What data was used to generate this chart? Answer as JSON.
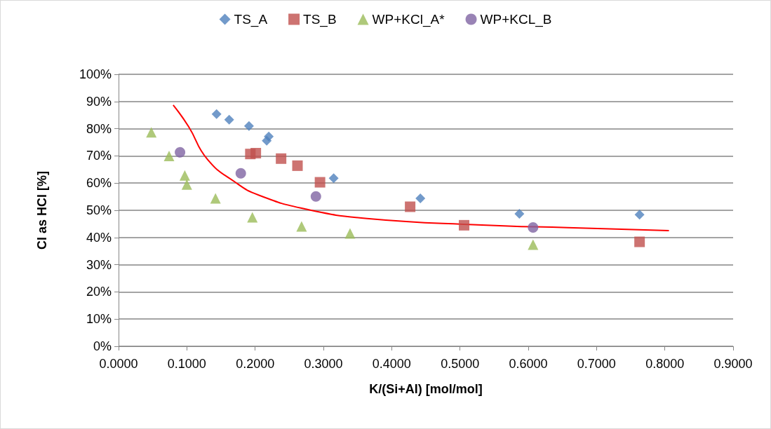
{
  "chart_data": {
    "type": "scatter",
    "xlabel": "K/(Si+Al) [mol/mol]",
    "ylabel": "Cl as HCl [%]",
    "xlim": [
      0,
      0.9
    ],
    "xticks": [
      {
        "value": 0,
        "label": "0.0000"
      },
      {
        "value": 0.1,
        "label": "0.1000"
      },
      {
        "value": 0.2,
        "label": "0.2000"
      },
      {
        "value": 0.3,
        "label": "0.3000"
      },
      {
        "value": 0.4,
        "label": "0.4000"
      },
      {
        "value": 0.5,
        "label": "0.5000"
      },
      {
        "value": 0.6,
        "label": "0.6000"
      },
      {
        "value": 0.7,
        "label": "0.7000"
      },
      {
        "value": 0.8,
        "label": "0.8000"
      },
      {
        "value": 0.9,
        "label": "0.9000"
      }
    ],
    "ylim": [
      0,
      100
    ],
    "yticks": [
      {
        "value": 0,
        "label": "0%"
      },
      {
        "value": 10,
        "label": "10%"
      },
      {
        "value": 20,
        "label": "20%"
      },
      {
        "value": 30,
        "label": "30%"
      },
      {
        "value": 40,
        "label": "40%"
      },
      {
        "value": 50,
        "label": "50%"
      },
      {
        "value": 60,
        "label": "60%"
      },
      {
        "value": 70,
        "label": "70%"
      },
      {
        "value": 80,
        "label": "80%"
      },
      {
        "value": 90,
        "label": "90%"
      },
      {
        "value": 100,
        "label": "100%"
      }
    ],
    "grid": "y",
    "legend": "top",
    "series": [
      {
        "name": "TS_A",
        "color": "#4f81bd",
        "marker": "diamond",
        "x": [
          0.1435,
          0.162,
          0.191,
          0.22,
          0.217,
          0.315,
          0.442,
          0.587,
          0.763
        ],
        "values": [
          85.4,
          83.3,
          81.0,
          77.1,
          75.6,
          61.8,
          54.4,
          48.7,
          48.4
        ]
      },
      {
        "name": "TS_B",
        "color": "#c0504d",
        "marker": "square",
        "x": [
          0.193,
          0.201,
          0.238,
          0.262,
          0.295,
          0.427,
          0.506,
          0.763
        ],
        "values": [
          70.7,
          71.0,
          69.0,
          66.4,
          60.3,
          51.3,
          44.5,
          38.4
        ]
      },
      {
        "name": "WP+KCl_A*",
        "color": "#9bbb59",
        "marker": "triangle",
        "x": [
          0.048,
          0.074,
          0.097,
          0.1,
          0.142,
          0.196,
          0.268,
          0.339,
          0.607
        ],
        "values": [
          78.7,
          70.0,
          62.8,
          59.5,
          54.4,
          47.4,
          44.1,
          41.5,
          37.4
        ]
      },
      {
        "name": "WP+KCL_B",
        "color": "#8064a2",
        "marker": "circle",
        "x": [
          0.09,
          0.179,
          0.289,
          0.607
        ],
        "values": [
          71.3,
          63.6,
          55.1,
          43.7
        ]
      },
      {
        "type": "line",
        "color": "#ff0000",
        "marker": "none",
        "line_style": "solid",
        "x": [
          0.08,
          0.1025,
          0.13,
          0.171,
          0.205,
          0.273,
          0.364,
          0.532,
          0.658,
          0.806
        ],
        "values": [
          88.7,
          80.8,
          68.8,
          60.3,
          55.6,
          50.5,
          47.0,
          44.6,
          43.6,
          42.5
        ]
      }
    ]
  }
}
